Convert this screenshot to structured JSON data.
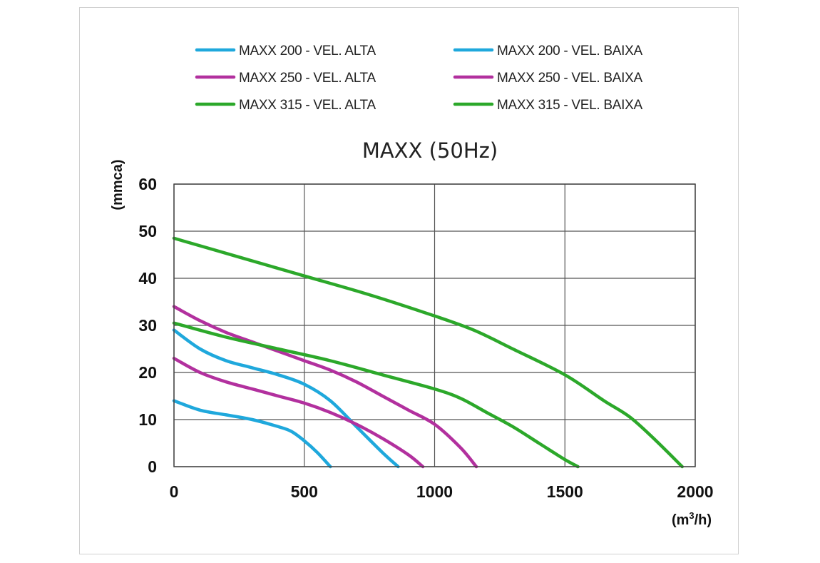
{
  "chart_data": {
    "type": "line",
    "title": "MAXX (50Hz)",
    "xlabel": "(m³/h)",
    "xlabel_base": "(m",
    "xlabel_sup": "3",
    "xlabel_end": "/h)",
    "ylabel": "(mmca)",
    "xlim": [
      0,
      2000
    ],
    "ylim": [
      0,
      60
    ],
    "xticks": [
      0,
      500,
      1000,
      1500,
      2000
    ],
    "yticks": [
      0,
      10,
      20,
      30,
      40,
      50,
      60
    ],
    "grid": true,
    "legend_position": "top",
    "series": [
      {
        "name": "MAXX 200 - VEL. ALTA",
        "color": "#1FA8DC",
        "x": [
          0,
          100,
          200,
          300,
          400,
          500,
          600,
          700,
          800,
          860
        ],
        "y": [
          29,
          25,
          22.5,
          21,
          19.5,
          17.5,
          14,
          8.5,
          3,
          0
        ]
      },
      {
        "name": "MAXX 200 - VEL. BAIXA",
        "color": "#1FA8DC",
        "x": [
          0,
          100,
          200,
          300,
          400,
          450,
          500,
          550,
          600
        ],
        "y": [
          14,
          12,
          11,
          10,
          8.5,
          7.5,
          5.5,
          3,
          0
        ]
      },
      {
        "name": "MAXX 250 - VEL. ALTA",
        "color": "#B2309E",
        "x": [
          0,
          100,
          200,
          300,
          400,
          500,
          600,
          700,
          800,
          900,
          1000,
          1100,
          1160
        ],
        "y": [
          34,
          31,
          28.5,
          26.5,
          24.5,
          22.5,
          20.5,
          18,
          15,
          12,
          9,
          4,
          0
        ]
      },
      {
        "name": "MAXX 250 - VEL. BAIXA",
        "color": "#B2309E",
        "x": [
          0,
          100,
          200,
          300,
          400,
          500,
          600,
          700,
          800,
          900,
          955
        ],
        "y": [
          23,
          20,
          18,
          16.5,
          15,
          13.5,
          11.5,
          9,
          6,
          2.5,
          0
        ]
      },
      {
        "name": "MAXX 315 - VEL. ALTA",
        "color": "#2CA82A",
        "x": [
          0,
          250,
          500,
          750,
          1000,
          1150,
          1300,
          1500,
          1650,
          1750,
          1850,
          1950
        ],
        "y": [
          48.5,
          44.5,
          40.5,
          36.5,
          32,
          29,
          25,
          19.5,
          14,
          10.5,
          5.5,
          0
        ]
      },
      {
        "name": "MAXX 315 - VEL. BAIXA",
        "color": "#2CA82A",
        "x": [
          0,
          200,
          400,
          600,
          800,
          1000,
          1100,
          1200,
          1300,
          1400,
          1500,
          1550
        ],
        "y": [
          30.5,
          27.5,
          25,
          22.5,
          19.5,
          16.5,
          14.5,
          11.5,
          8.5,
          5,
          1.5,
          0
        ]
      }
    ]
  }
}
